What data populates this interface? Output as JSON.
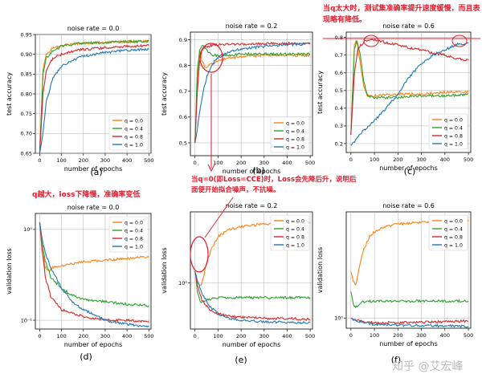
{
  "annotations": {
    "top_right": "当q太大时，测试集准确率提升速度缓慢，而且表现略有降低。",
    "bottom_left": "q越大，loss下降慢，准确率变低",
    "middle": "当q=0(即Loss=CCE)时，Loss会先降后升，说明后面便开始拟合噪声，不抗噪。"
  },
  "watermark": "知乎 @艾宏峰",
  "colors": {
    "q0": "#ff7f0e",
    "q04": "#2ca02c",
    "q08": "#d62728",
    "q10": "#1f77b4",
    "annotation": "#e6192b"
  },
  "chart_data": [
    {
      "id": "a",
      "panel_label": "(a)",
      "type": "line",
      "scale": "linear",
      "title": "noise rate = 0.0",
      "xlabel": "number of epochs",
      "ylabel": "test accuracy",
      "xlim": [
        -20,
        510
      ],
      "ylim": [
        0.65,
        0.95
      ],
      "xticks": [
        0,
        100,
        200,
        300,
        400,
        500
      ],
      "yticks": [
        0.65,
        0.7,
        0.75,
        0.8,
        0.85,
        0.9,
        0.95
      ],
      "ytick_labels": [
        "0.65",
        "0.70",
        "0.75",
        "0.80",
        "0.85",
        "0.90",
        "0.95"
      ],
      "legend_loc": "lower-right",
      "series": [
        {
          "name": "q = 0.0",
          "x": [
            0,
            15,
            30,
            60,
            100,
            150,
            200,
            300,
            400,
            500
          ],
          "values": [
            0.65,
            0.86,
            0.9,
            0.915,
            0.922,
            0.926,
            0.928,
            0.93,
            0.932,
            0.933
          ]
        },
        {
          "name": "q = 0.4",
          "x": [
            0,
            15,
            30,
            60,
            100,
            150,
            200,
            300,
            400,
            500
          ],
          "values": [
            0.65,
            0.85,
            0.89,
            0.91,
            0.92,
            0.925,
            0.928,
            0.93,
            0.932,
            0.933
          ]
        },
        {
          "name": "q = 0.8",
          "x": [
            0,
            15,
            30,
            60,
            100,
            150,
            200,
            300,
            400,
            500
          ],
          "values": [
            0.65,
            0.8,
            0.86,
            0.89,
            0.9,
            0.908,
            0.912,
            0.917,
            0.92,
            0.922
          ]
        },
        {
          "name": "q = 1.0",
          "x": [
            0,
            15,
            30,
            60,
            100,
            150,
            200,
            300,
            400,
            500
          ],
          "values": [
            0.65,
            0.7,
            0.78,
            0.84,
            0.87,
            0.885,
            0.895,
            0.905,
            0.91,
            0.913
          ]
        }
      ]
    },
    {
      "id": "b",
      "panel_label": "(b)",
      "type": "line",
      "scale": "linear",
      "title": "noise rate = 0.2",
      "xlabel": "number of epochs",
      "ylabel": "test accuracy",
      "xlim": [
        -20,
        510
      ],
      "ylim": [
        0.45,
        0.93
      ],
      "xticks": [
        0,
        100,
        200,
        300,
        400,
        500
      ],
      "yticks": [
        0.5,
        0.6,
        0.7,
        0.8,
        0.9
      ],
      "ytick_labels": [
        "0.5",
        "0.6",
        "0.7",
        "0.8",
        "0.9"
      ],
      "legend_loc": "lower-right",
      "series": [
        {
          "name": "q = 0.0",
          "x": [
            0,
            10,
            20,
            30,
            45,
            60,
            80,
            100,
            150,
            200,
            300,
            400,
            500
          ],
          "values": [
            0.5,
            0.72,
            0.86,
            0.82,
            0.79,
            0.8,
            0.81,
            0.82,
            0.83,
            0.835,
            0.84,
            0.84,
            0.84
          ]
        },
        {
          "name": "q = 0.4",
          "x": [
            0,
            10,
            20,
            30,
            40,
            60,
            80,
            100,
            150,
            200,
            300,
            400,
            500
          ],
          "values": [
            0.5,
            0.78,
            0.86,
            0.88,
            0.87,
            0.85,
            0.84,
            0.84,
            0.84,
            0.845,
            0.845,
            0.845,
            0.845
          ]
        },
        {
          "name": "q = 0.8",
          "x": [
            0,
            10,
            20,
            30,
            50,
            80,
            100,
            150,
            200,
            300,
            400,
            500
          ],
          "values": [
            0.5,
            0.7,
            0.82,
            0.86,
            0.875,
            0.88,
            0.882,
            0.883,
            0.884,
            0.885,
            0.886,
            0.887
          ]
        },
        {
          "name": "q = 1.0",
          "x": [
            0,
            10,
            20,
            40,
            60,
            80,
            100,
            150,
            200,
            300,
            400,
            500
          ],
          "values": [
            0.5,
            0.55,
            0.62,
            0.72,
            0.78,
            0.81,
            0.83,
            0.855,
            0.865,
            0.875,
            0.88,
            0.885
          ]
        }
      ]
    },
    {
      "id": "c",
      "panel_label": "(c)",
      "type": "line",
      "scale": "linear",
      "title": "noise rate = 0.6",
      "xlabel": "number of epochs",
      "ylabel": "test accuracy",
      "xlim": [
        -20,
        510
      ],
      "ylim": [
        0.15,
        0.83
      ],
      "xticks": [
        0,
        100,
        200,
        300,
        400,
        500
      ],
      "yticks": [
        0.2,
        0.3,
        0.4,
        0.5,
        0.6,
        0.7,
        0.8
      ],
      "ytick_labels": [
        "0.2",
        "0.3",
        "0.4",
        "0.5",
        "0.6",
        "0.7",
        "0.8"
      ],
      "legend_loc": "lower-right",
      "series": [
        {
          "name": "q = 0.0",
          "x": [
            0,
            15,
            25,
            40,
            55,
            70,
            100,
            200,
            300,
            400,
            500
          ],
          "values": [
            0.25,
            0.76,
            0.78,
            0.65,
            0.52,
            0.47,
            0.47,
            0.48,
            0.48,
            0.49,
            0.49
          ]
        },
        {
          "name": "q = 0.4",
          "x": [
            0,
            15,
            25,
            40,
            55,
            70,
            100,
            200,
            300,
            400,
            500
          ],
          "values": [
            0.25,
            0.74,
            0.78,
            0.7,
            0.55,
            0.47,
            0.46,
            0.46,
            0.47,
            0.47,
            0.48
          ]
        },
        {
          "name": "q = 0.8",
          "x": [
            0,
            15,
            30,
            60,
            90,
            150,
            200,
            250,
            300,
            350,
            400,
            450,
            500
          ],
          "values": [
            0.25,
            0.6,
            0.74,
            0.78,
            0.79,
            0.77,
            0.76,
            0.74,
            0.73,
            0.71,
            0.7,
            0.68,
            0.67
          ]
        },
        {
          "name": "q = 1.0",
          "x": [
            0,
            20,
            50,
            100,
            150,
            200,
            250,
            300,
            350,
            400,
            450,
            500
          ],
          "values": [
            0.19,
            0.22,
            0.27,
            0.33,
            0.4,
            0.48,
            0.58,
            0.65,
            0.7,
            0.73,
            0.76,
            0.77
          ]
        }
      ]
    },
    {
      "id": "d",
      "panel_label": "(d)",
      "type": "line",
      "scale": "log",
      "title": "noise rate = 0.0",
      "xlabel": "number of epochs",
      "ylabel": "validation loss",
      "xlim": [
        -20,
        510
      ],
      "ylim": [
        0.08,
        1.5
      ],
      "xticks": [
        0,
        100,
        200,
        300,
        400,
        500
      ],
      "yticks": [
        1,
        0.1
      ],
      "ytick_labels": [
        "10⁰",
        "10⁻¹"
      ],
      "legend_loc": "upper-right",
      "series": [
        {
          "name": "q = 0.0",
          "x": [
            0,
            10,
            25,
            40,
            60,
            100,
            150,
            200,
            300,
            400,
            500
          ],
          "values": [
            1.2,
            0.6,
            0.38,
            0.35,
            0.38,
            0.4,
            0.42,
            0.44,
            0.46,
            0.48,
            0.5
          ]
        },
        {
          "name": "q = 0.4",
          "x": [
            0,
            10,
            25,
            50,
            100,
            150,
            200,
            300,
            400,
            500
          ],
          "values": [
            1.2,
            0.7,
            0.45,
            0.3,
            0.22,
            0.19,
            0.17,
            0.16,
            0.15,
            0.145
          ]
        },
        {
          "name": "q = 0.8",
          "x": [
            0,
            10,
            25,
            50,
            100,
            150,
            200,
            300,
            400,
            500
          ],
          "values": [
            1.2,
            0.6,
            0.3,
            0.18,
            0.13,
            0.12,
            0.11,
            0.1,
            0.1,
            0.095
          ]
        },
        {
          "name": "q = 1.0",
          "x": [
            0,
            10,
            25,
            50,
            100,
            150,
            200,
            300,
            400,
            500
          ],
          "values": [
            1.2,
            0.8,
            0.55,
            0.38,
            0.22,
            0.16,
            0.13,
            0.1,
            0.09,
            0.085
          ]
        }
      ]
    },
    {
      "id": "e",
      "panel_label": "(e)",
      "type": "line",
      "scale": "log",
      "title": "noise rate = 0.2",
      "xlabel": "number of epochs",
      "ylabel": "validation loss",
      "xlim": [
        -20,
        510
      ],
      "ylim": [
        0.2,
        12
      ],
      "xticks": [
        0,
        100,
        200,
        300,
        400,
        500
      ],
      "yticks": [
        1
      ],
      "ytick_labels": [
        "10⁰"
      ],
      "legend_loc": "upper-right",
      "series": [
        {
          "name": "q = 0.0",
          "x": [
            0,
            10,
            20,
            30,
            40,
            60,
            80,
            100,
            150,
            200,
            300,
            400,
            500
          ],
          "values": [
            1.5,
            1.1,
            0.9,
            1.0,
            1.4,
            2.5,
            3.8,
            5.0,
            6.5,
            7.2,
            7.8,
            8.0,
            8.2
          ]
        },
        {
          "name": "q = 0.4",
          "x": [
            0,
            10,
            20,
            30,
            50,
            100,
            150,
            200,
            300,
            400,
            500
          ],
          "values": [
            1.5,
            0.75,
            0.55,
            0.5,
            0.55,
            0.6,
            0.6,
            0.6,
            0.6,
            0.6,
            0.6
          ]
        },
        {
          "name": "q = 0.8",
          "x": [
            0,
            10,
            30,
            60,
            100,
            150,
            200,
            300,
            400,
            500
          ],
          "values": [
            1.5,
            0.9,
            0.55,
            0.4,
            0.34,
            0.31,
            0.3,
            0.29,
            0.29,
            0.28
          ]
        },
        {
          "name": "q = 1.0",
          "x": [
            0,
            10,
            30,
            60,
            100,
            150,
            200,
            300,
            400,
            500
          ],
          "values": [
            1.5,
            1.1,
            0.7,
            0.45,
            0.34,
            0.29,
            0.27,
            0.26,
            0.25,
            0.25
          ]
        }
      ]
    },
    {
      "id": "f",
      "panel_label": "(f)",
      "type": "line",
      "scale": "log",
      "title": "noise rate = 0.6",
      "xlabel": "number of epochs",
      "ylabel": "validation loss",
      "xlim": [
        -20,
        510
      ],
      "ylim": [
        0.7,
        40
      ],
      "xticks": [
        0,
        100,
        200,
        300,
        400,
        500
      ],
      "yticks": [
        1
      ],
      "ytick_labels": [
        "10⁰"
      ],
      "legend_loc": "upper-right",
      "series": [
        {
          "name": "q = 0.0",
          "x": [
            0,
            10,
            20,
            30,
            40,
            60,
            80,
            100,
            150,
            200,
            300,
            400,
            500
          ],
          "values": [
            5.0,
            3.5,
            3.2,
            4.5,
            7.0,
            12.0,
            17.0,
            20.0,
            24.0,
            26.0,
            28.0,
            29.0,
            30.0
          ]
        },
        {
          "name": "q = 0.4",
          "x": [
            0,
            10,
            20,
            30,
            50,
            100,
            200,
            300,
            400,
            500
          ],
          "values": [
            2.5,
            1.6,
            1.45,
            1.55,
            1.75,
            1.8,
            1.8,
            1.8,
            1.8,
            1.8
          ]
        },
        {
          "name": "q = 0.8",
          "x": [
            0,
            10,
            30,
            60,
            100,
            200,
            300,
            400,
            500
          ],
          "values": [
            1.0,
            0.95,
            0.92,
            0.86,
            0.84,
            0.85,
            0.86,
            0.88,
            0.9
          ]
        },
        {
          "name": "q = 1.0",
          "x": [
            0,
            10,
            30,
            60,
            100,
            200,
            300,
            400,
            500
          ],
          "values": [
            1.0,
            0.95,
            0.9,
            0.85,
            0.8,
            0.78,
            0.77,
            0.76,
            0.75
          ]
        }
      ]
    }
  ]
}
